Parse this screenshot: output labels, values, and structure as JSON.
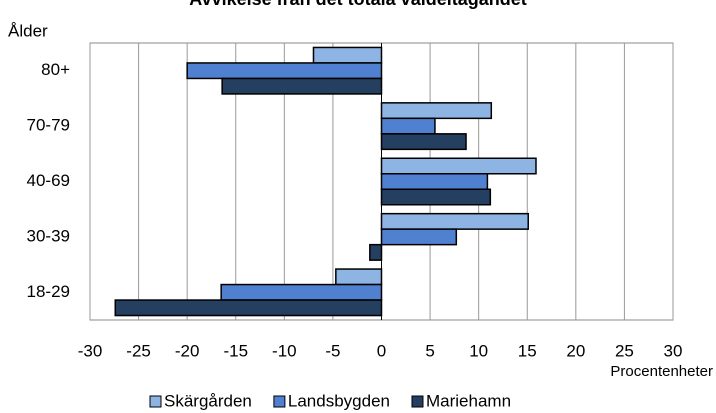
{
  "chart_data": {
    "type": "hbar",
    "title": "Avvikelse från det totala valdeltagandet",
    "y_label": "Ålder",
    "x_label": "Procentenheter",
    "categories": [
      "80+",
      "70-79",
      "40-69",
      "30-39",
      "18-29"
    ],
    "series": [
      {
        "name": "Skärgården",
        "color": "#8db4e2",
        "values": [
          -7,
          11.3,
          15.9,
          15.1,
          -4.7
        ]
      },
      {
        "name": "Landsbygden",
        "color": "#4f81d0",
        "values": [
          -20,
          5.5,
          10.9,
          7.7,
          -16.5
        ]
      },
      {
        "name": "Mariehamn",
        "color": "#243f60",
        "values": [
          -16.4,
          8.7,
          11.2,
          -1.2,
          -27.4
        ]
      }
    ],
    "xlim": [
      -30,
      30
    ],
    "xticks": [
      -30,
      -25,
      -20,
      -15,
      -10,
      -5,
      0,
      5,
      10,
      15,
      20,
      25,
      30
    ],
    "grid": true
  }
}
